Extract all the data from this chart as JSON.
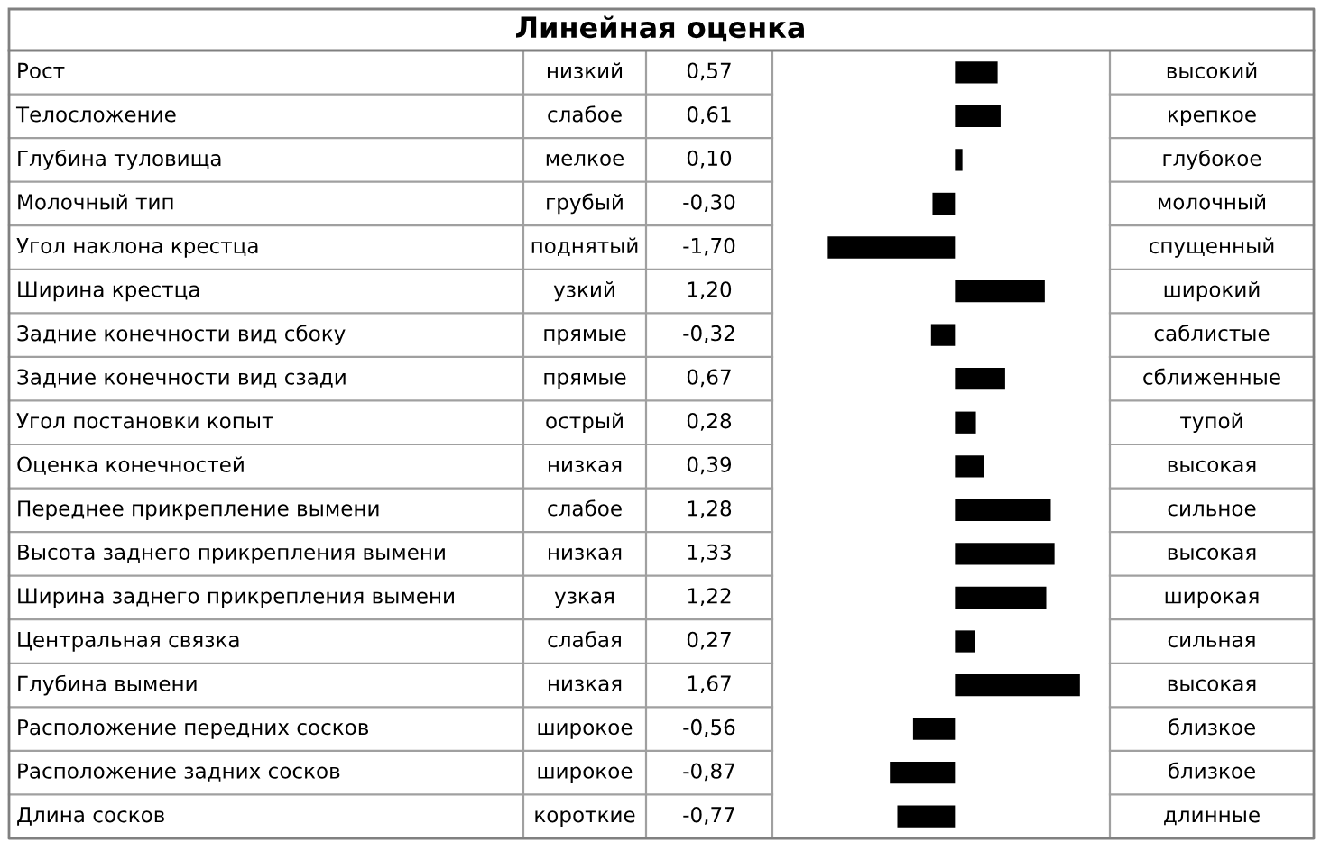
{
  "chart_data": {
    "type": "bar",
    "orientation": "horizontal",
    "title": "Линейная оценка",
    "categories": [
      "Рост",
      "Телосложение",
      "Глубина туловища",
      "Молочный тип",
      "Угол наклона крестца",
      "Ширина крестца",
      "Задние конечности вид сбоку",
      "Задние конечности вид сзади",
      "Угол постановки копыт",
      "Оценка конечностей",
      "Переднее прикрепление вымени",
      "Высота заднего прикрепления вымени",
      "Ширина заднего прикрепления вымени",
      "Центральная связка",
      "Глубина вымени",
      "Расположение передних сосков",
      "Расположение задних сосков",
      "Длина сосков"
    ],
    "values": [
      0.57,
      0.61,
      0.1,
      -0.3,
      -1.7,
      1.2,
      -0.32,
      0.67,
      0.28,
      0.39,
      1.28,
      1.33,
      1.22,
      0.27,
      1.67,
      -0.56,
      -0.87,
      -0.77
    ],
    "value_labels": [
      "0,57",
      "0,61",
      "0,10",
      "-0,30",
      "-1,70",
      "1,20",
      "-0,32",
      "0,67",
      "0,28",
      "0,39",
      "1,28",
      "1,33",
      "1,22",
      "0,27",
      "1,67",
      "-0,56",
      "-0,87",
      "-0,77"
    ],
    "color": "#000000",
    "xlim": [
      -2.44,
      2.07
    ],
    "tick_labels": "y",
    "annotations": [
      "низкий",
      "высокий",
      "слабое",
      "крепкое",
      "мелкое",
      "глубокое",
      "грубый",
      "молочный",
      "поднятый",
      "спущенный",
      "узкий",
      "широкий",
      "прямые",
      "саблистые",
      "прямые",
      "сближенные",
      "острый",
      "тупой",
      "низкая",
      "высокая",
      "слабое",
      "сильное",
      "низкая",
      "высокая",
      "узкая",
      "широкая",
      "слабая",
      "сильная",
      "низкая",
      "высокая",
      "широкое",
      "близкое",
      "широкое",
      "близкое",
      "короткие",
      "длинные"
    ]
  }
}
